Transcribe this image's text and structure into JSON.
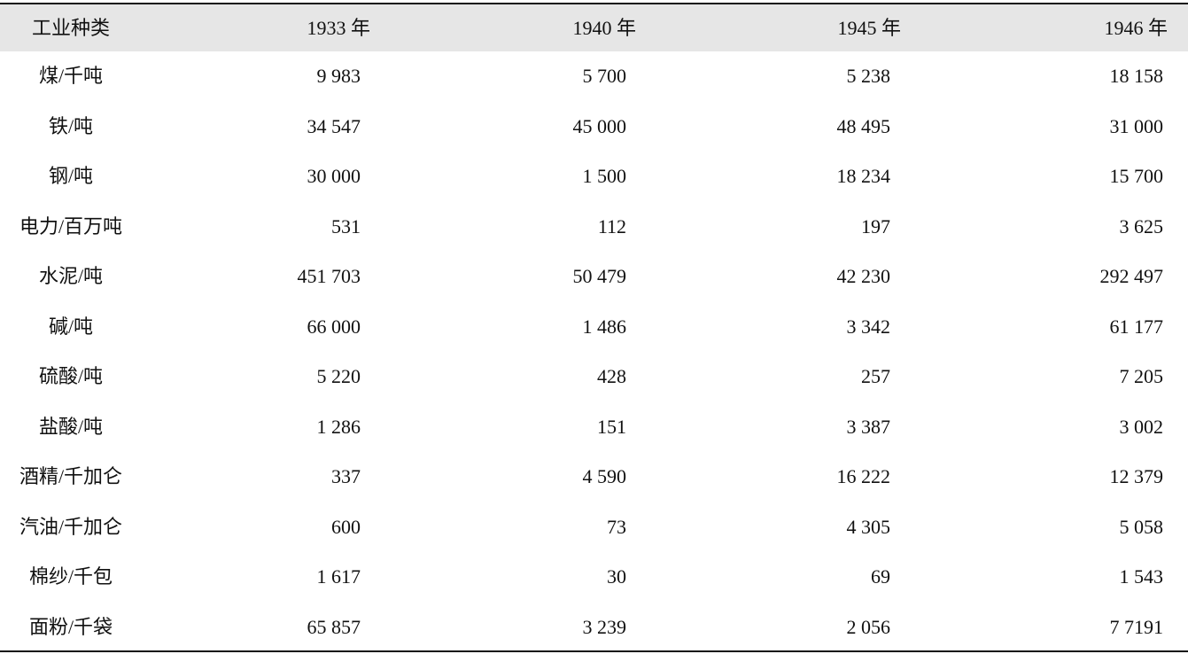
{
  "table": {
    "header": [
      "工业种类",
      "1933 年",
      "1940 年",
      "1945 年",
      "1946 年"
    ],
    "rows": [
      [
        "煤/千吨",
        "9 983",
        "5 700",
        "5 238",
        "18 158"
      ],
      [
        "铁/吨",
        "34 547",
        "45 000",
        "48 495",
        "31 000"
      ],
      [
        "钢/吨",
        "30 000",
        "1 500",
        "18 234",
        "15 700"
      ],
      [
        "电力/百万吨",
        "531",
        "112",
        "197",
        "3 625"
      ],
      [
        "水泥/吨",
        "451 703",
        "50 479",
        "42 230",
        "292 497"
      ],
      [
        "碱/吨",
        "66 000",
        "1 486",
        "3 342",
        "61 177"
      ],
      [
        "硫酸/吨",
        "5 220",
        "428",
        "257",
        "7 205"
      ],
      [
        "盐酸/吨",
        "1 286",
        "151",
        "3 387",
        "3 002"
      ],
      [
        "酒精/千加仑",
        "337",
        "4 590",
        "16 222",
        "12 379"
      ],
      [
        "汽油/千加仑",
        "600",
        "73",
        "4 305",
        "5 058"
      ],
      [
        "棉纱/千包",
        "1 617",
        "30",
        "69",
        "1 543"
      ],
      [
        "面粉/千袋",
        "65 857",
        "3 239",
        "2 056",
        "7 7191"
      ]
    ]
  }
}
